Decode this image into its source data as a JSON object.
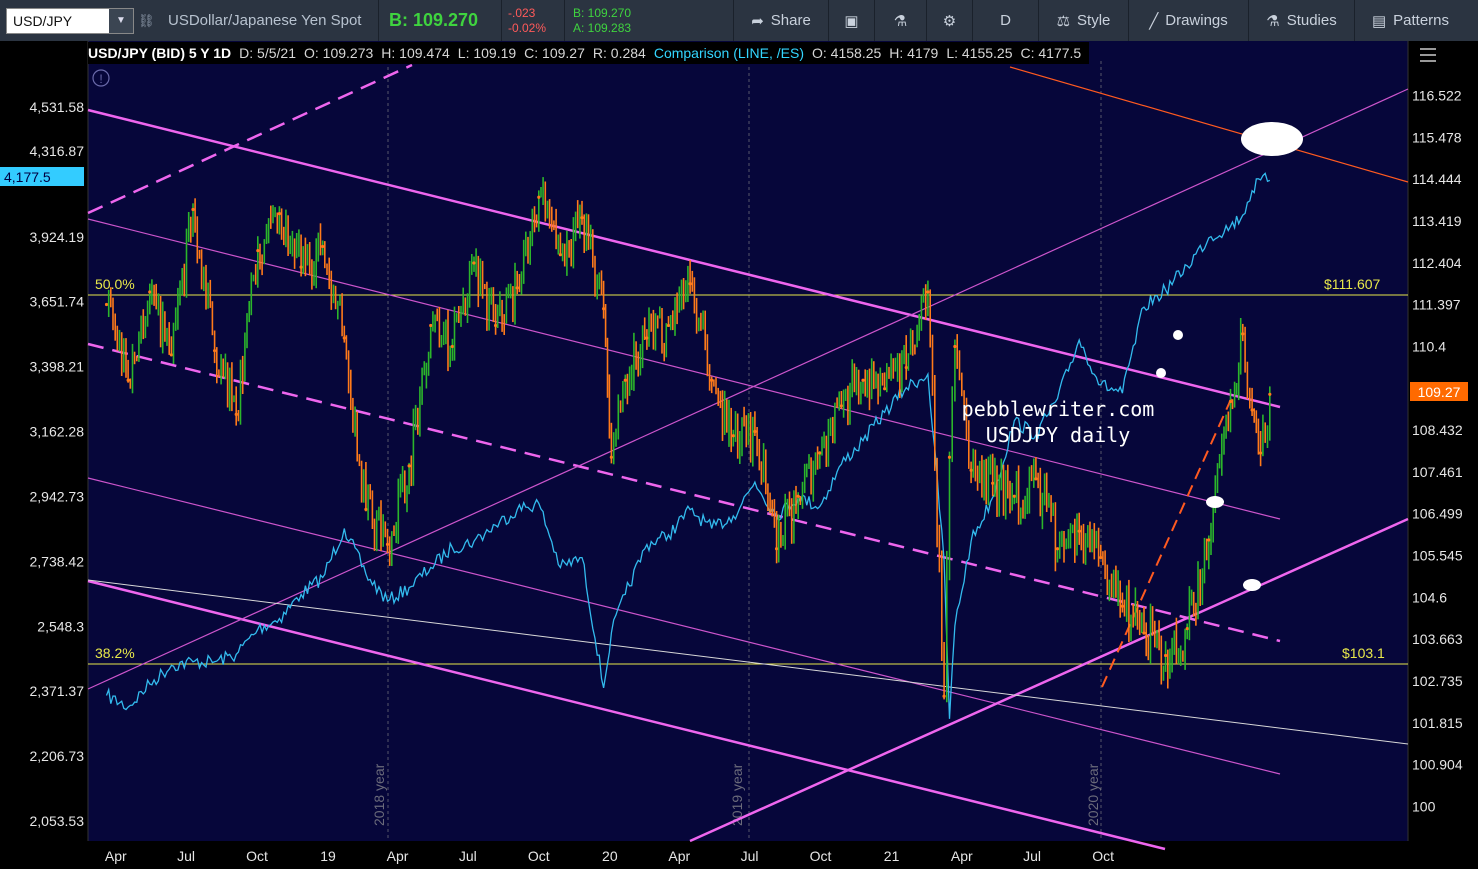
{
  "toolbar": {
    "symbol": "USD/JPY",
    "description": "USDollar/Japanese Yen Spot",
    "bid": "B: 109.270",
    "change": "-.023",
    "change_pct": "-0.02%",
    "bid_small": "B: 109.270",
    "ask_small": "A: 109.283",
    "share_label": "Share",
    "interval_label": "D",
    "style_label": "Style",
    "drawings_label": "Drawings",
    "studies_label": "Studies",
    "patterns_label": "Patterns"
  },
  "header": {
    "title": "USD/JPY (BID) 5 Y 1D",
    "date": "D: 5/5/21",
    "open": "O: 109.273",
    "high": "H: 109.474",
    "low": "L: 109.19",
    "close": "C: 109.27",
    "range": "R: 0.284",
    "comparison": "Comparison (LINE, /ES)",
    "cmp_open": "O: 4158.25",
    "cmp_high": "H: 4179",
    "cmp_low": "L: 4155.25",
    "cmp_close": "C: 4177.5"
  },
  "colors": {
    "background": "#06063a",
    "candle_up": "#2bb52b",
    "candle_down": "#ff7a1a",
    "comparison_line": "#33bbee",
    "channel_magenta": "#ee66ee",
    "fib_yellow": "#e8e84a",
    "price_badge": "#ff6a00",
    "cmp_badge": "#33ccff"
  },
  "annotations": {
    "watermark_line1": "pebblewriter.com",
    "watermark_line2": "USDJPY daily",
    "fib_50_label": "50.0%",
    "fib_50_price": "$111.607",
    "fib_382_label": "38.2%",
    "fib_382_price": "$103.1",
    "year_2018": "2018 year",
    "year_2019": "2019 year",
    "year_2020": "2020 year"
  },
  "chart_data": {
    "type": "line",
    "title": "USD/JPY (BID) 5 Y 1D",
    "right_axis_ticks": [
      "116.522",
      "115.478",
      "114.444",
      "113.419",
      "112.404",
      "111.397",
      "110.4",
      "109.27",
      "108.432",
      "107.461",
      "106.499",
      "105.545",
      "104.6",
      "103.663",
      "102.735",
      "101.815",
      "100.904",
      "100"
    ],
    "left_axis_ticks": [
      "4,531.58",
      "4,316.87",
      "4,177.5",
      "3,924.19",
      "3,651.74",
      "3,398.21",
      "3,162.28",
      "2,942.73",
      "2,738.42",
      "2,548.3",
      "2,371.37",
      "2,206.73",
      "2,053.53"
    ],
    "x_ticks": [
      "Apr",
      "Jul",
      "Oct",
      "19",
      "Apr",
      "Jul",
      "Oct",
      "20",
      "Apr",
      "Jul",
      "Oct",
      "21",
      "Apr",
      "Jul",
      "Oct"
    ],
    "last_price": "109.27",
    "last_comparison": "4,177.5",
    "series": [
      {
        "name": "USD/JPY",
        "x": [
          "2017-03-20",
          "2017-04-17",
          "2017-05-15",
          "2017-06-12",
          "2017-07-10",
          "2017-08-07",
          "2017-09-04",
          "2017-10-02",
          "2017-10-30",
          "2017-11-27",
          "2017-12-25",
          "2018-01-22",
          "2018-02-19",
          "2018-03-19",
          "2018-04-16",
          "2018-05-14",
          "2018-06-11",
          "2018-07-09",
          "2018-08-06",
          "2018-09-03",
          "2018-10-01",
          "2018-10-29",
          "2018-11-26",
          "2018-12-24",
          "2019-01-03",
          "2019-01-21",
          "2019-02-18",
          "2019-03-18",
          "2019-04-15",
          "2019-05-13",
          "2019-06-10",
          "2019-07-08",
          "2019-08-05",
          "2019-09-02",
          "2019-09-30",
          "2019-10-28",
          "2019-11-25",
          "2019-12-23",
          "2020-01-20",
          "2020-02-17",
          "2020-03-09",
          "2020-03-16",
          "2020-03-23",
          "2020-04-13",
          "2020-05-11",
          "2020-06-08",
          "2020-07-06",
          "2020-08-03",
          "2020-08-31",
          "2020-09-28",
          "2020-10-26",
          "2020-11-23",
          "2020-12-21",
          "2021-01-18",
          "2021-02-15",
          "2021-03-15",
          "2021-03-31",
          "2021-04-12",
          "2021-04-23",
          "2021-05-05"
        ],
        "values": [
          111.4,
          109.6,
          111.7,
          110.2,
          113.7,
          110.3,
          108.8,
          112.7,
          113.6,
          112.3,
          112.8,
          110.6,
          106.6,
          105.8,
          107.6,
          110.9,
          110.4,
          112.4,
          110.9,
          111.8,
          114.0,
          112.6,
          113.5,
          111.3,
          107.8,
          109.6,
          110.6,
          110.9,
          111.9,
          109.6,
          108.3,
          108.4,
          105.7,
          106.9,
          107.9,
          109.0,
          109.6,
          109.4,
          109.9,
          111.7,
          102.4,
          107.8,
          110.4,
          107.5,
          107.2,
          106.9,
          107.3,
          105.7,
          106.1,
          105.5,
          104.4,
          103.8,
          103.3,
          103.9,
          105.9,
          109.1,
          110.7,
          108.9,
          107.9,
          109.27
        ]
      },
      {
        "name": "/ES",
        "x": [
          "2017-03-20",
          "2017-04-17",
          "2017-05-15",
          "2017-06-12",
          "2017-07-10",
          "2017-08-07",
          "2017-09-04",
          "2017-10-02",
          "2017-10-30",
          "2017-11-27",
          "2017-12-25",
          "2018-01-22",
          "2018-02-19",
          "2018-03-19",
          "2018-04-16",
          "2018-05-14",
          "2018-06-11",
          "2018-07-09",
          "2018-08-06",
          "2018-09-03",
          "2018-10-01",
          "2018-10-29",
          "2018-11-26",
          "2018-12-24",
          "2019-01-03",
          "2019-01-21",
          "2019-02-18",
          "2019-03-18",
          "2019-04-15",
          "2019-05-13",
          "2019-06-10",
          "2019-07-08",
          "2019-08-05",
          "2019-09-02",
          "2019-09-30",
          "2019-10-28",
          "2019-11-25",
          "2019-12-23",
          "2020-01-20",
          "2020-02-17",
          "2020-03-09",
          "2020-03-16",
          "2020-03-23",
          "2020-04-13",
          "2020-05-11",
          "2020-06-08",
          "2020-07-06",
          "2020-08-03",
          "2020-08-31",
          "2020-09-28",
          "2020-10-26",
          "2020-11-23",
          "2020-12-21",
          "2021-01-18",
          "2021-02-15",
          "2021-03-15",
          "2021-03-31",
          "2021-04-12",
          "2021-04-23",
          "2021-05-05"
        ],
        "values": [
          2360,
          2330,
          2390,
          2440,
          2450,
          2450,
          2470,
          2540,
          2570,
          2640,
          2690,
          2840,
          2700,
          2620,
          2660,
          2720,
          2780,
          2800,
          2850,
          2900,
          2920,
          2720,
          2750,
          2380,
          2530,
          2640,
          2790,
          2820,
          2900,
          2840,
          2880,
          2990,
          2880,
          2940,
          2910,
          3050,
          3130,
          3230,
          3320,
          3370,
          2740,
          2300,
          2550,
          2800,
          2940,
          3200,
          3150,
          3280,
          3500,
          3330,
          3300,
          3630,
          3700,
          3800,
          3920,
          3970,
          4020,
          4130,
          4180,
          4177.5
        ]
      }
    ],
    "fib_levels": [
      {
        "label": "50.0%",
        "value": 111.607
      },
      {
        "label": "38.2%",
        "value": 103.1
      }
    ]
  }
}
